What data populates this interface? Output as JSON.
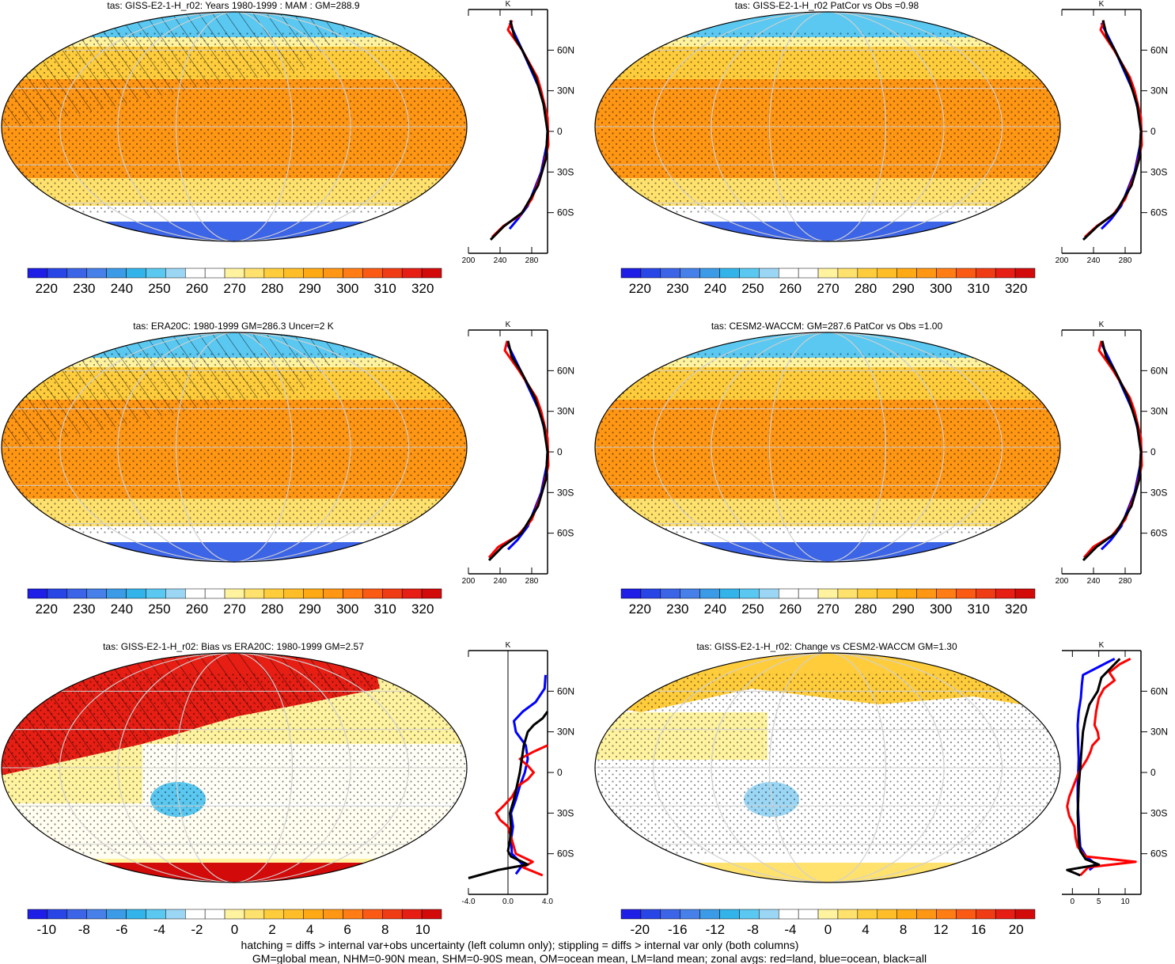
{
  "panels": [
    {
      "id": "p1",
      "title": "tas: GISS-E2-1-H_r02: Years 1980-1999 : MAM : GM=288.9",
      "kind": "abs",
      "colorbar": {
        "colors": "abs",
        "labels": [
          "220",
          "230",
          "240",
          "250",
          "260",
          "270",
          "280",
          "290",
          "300",
          "310",
          "320"
        ]
      },
      "zonal": {
        "unit": "K",
        "xlim": [
          200,
          300
        ],
        "xticks": [
          "200",
          "240",
          "280"
        ],
        "lat_labels": [
          "60N",
          "30N",
          "0",
          "30S",
          "60S"
        ],
        "lat_values": [
          60,
          30,
          0,
          -30,
          -60
        ],
        "series": [
          {
            "color": "#0000ff",
            "lat": [
              80,
              60,
              30,
              10,
              0,
              -10,
              -30,
              -55,
              -65,
              -72
            ],
            "val": [
              252,
              268,
              291,
              299,
              300,
              299,
              292,
              275,
              262,
              252
            ]
          },
          {
            "color": "#ff0000",
            "lat": [
              82,
              75,
              60,
              40,
              30,
              10,
              -10,
              -30,
              -50,
              -62,
              -70,
              -78
            ],
            "val": [
              255,
              250,
              268,
              287,
              292,
              300,
              301,
              293,
              280,
              265,
              244,
              230
            ]
          },
          {
            "color": "#000000",
            "lat": [
              82,
              70,
              60,
              40,
              20,
              0,
              -20,
              -40,
              -60,
              -70,
              -80
            ],
            "val": [
              253,
              258,
              268,
              285,
              295,
              300,
              298,
              288,
              268,
              245,
              228
            ]
          }
        ]
      }
    },
    {
      "id": "p2",
      "title": "tas: GISS-E2-1-H_r02 PatCor vs Obs =0.98",
      "kind": "abs",
      "colorbar": {
        "colors": "abs",
        "labels": [
          "220",
          "230",
          "240",
          "250",
          "260",
          "270",
          "280",
          "290",
          "300",
          "310",
          "320"
        ]
      },
      "zonal": {
        "unit": "K",
        "xlim": [
          200,
          300
        ],
        "xticks": [
          "200",
          "240",
          "280"
        ],
        "lat_labels": [
          "60N",
          "30N",
          "0",
          "30S",
          "60S"
        ],
        "lat_values": [
          60,
          30,
          0,
          -30,
          -60
        ],
        "series": [
          {
            "color": "#0000ff",
            "lat": [
              80,
              60,
              30,
              10,
              0,
              -10,
              -30,
              -55,
              -65,
              -72
            ],
            "val": [
              250,
              267,
              290,
              299,
              300,
              299,
              292,
              275,
              262,
              250
            ]
          },
          {
            "color": "#ff0000",
            "lat": [
              82,
              75,
              60,
              40,
              30,
              10,
              -10,
              -30,
              -50,
              -62,
              -70,
              -78
            ],
            "val": [
              253,
              249,
              266,
              286,
              292,
              300,
              301,
              293,
              280,
              264,
              244,
              229
            ]
          },
          {
            "color": "#000000",
            "lat": [
              82,
              70,
              60,
              40,
              20,
              0,
              -20,
              -40,
              -60,
              -70,
              -80
            ],
            "val": [
              252,
              257,
              267,
              284,
              295,
              300,
              298,
              288,
              268,
              245,
              227
            ]
          }
        ]
      }
    },
    {
      "id": "p3",
      "title": "tas: ERA20C: 1980-1999 GM=286.3 Uncer=2 K",
      "kind": "abs",
      "colorbar": {
        "colors": "abs",
        "labels": [
          "220",
          "230",
          "240",
          "250",
          "260",
          "270",
          "280",
          "290",
          "300",
          "310",
          "320"
        ]
      },
      "zonal": {
        "unit": "K",
        "xlim": [
          200,
          300
        ],
        "xticks": [
          "200",
          "240",
          "280"
        ],
        "lat_labels": [
          "60N",
          "30N",
          "0",
          "30S",
          "60S"
        ],
        "lat_values": [
          60,
          30,
          0,
          -30,
          -60
        ],
        "series": [
          {
            "color": "#0000ff",
            "lat": [
              80,
              60,
              30,
              10,
              0,
              -10,
              -30,
              -55,
              -65,
              -72
            ],
            "val": [
              249,
              266,
              290,
              299,
              300,
              299,
              292,
              275,
              262,
              250
            ]
          },
          {
            "color": "#ff0000",
            "lat": [
              82,
              75,
              60,
              40,
              30,
              10,
              -10,
              -30,
              -50,
              -62,
              -70,
              -78
            ],
            "val": [
              249,
              246,
              264,
              286,
              292,
              300,
              301,
              293,
              280,
              262,
              238,
              226
            ]
          },
          {
            "color": "#000000",
            "lat": [
              82,
              70,
              60,
              40,
              20,
              0,
              -20,
              -40,
              -60,
              -70,
              -80
            ],
            "val": [
              250,
              255,
              266,
              284,
              295,
              300,
              298,
              288,
              267,
              243,
              226
            ]
          }
        ]
      }
    },
    {
      "id": "p4",
      "title": "tas: CESM2-WACCM: GM=287.6 PatCor vs Obs =1.00",
      "kind": "abs",
      "colorbar": {
        "colors": "abs",
        "labels": [
          "220",
          "230",
          "240",
          "250",
          "260",
          "270",
          "280",
          "290",
          "300",
          "310",
          "320"
        ]
      },
      "zonal": {
        "unit": "K",
        "xlim": [
          200,
          300
        ],
        "xticks": [
          "200",
          "240",
          "280"
        ],
        "lat_labels": [
          "60N",
          "30N",
          "0",
          "30S",
          "60S"
        ],
        "lat_values": [
          60,
          30,
          0,
          -30,
          -60
        ],
        "series": [
          {
            "color": "#0000ff",
            "lat": [
              80,
              60,
              30,
              10,
              0,
              -10,
              -30,
              -55,
              -65,
              -72
            ],
            "val": [
              250,
              267,
              290,
              299,
              300,
              299,
              292,
              275,
              262,
              250
            ]
          },
          {
            "color": "#ff0000",
            "lat": [
              82,
              75,
              60,
              40,
              30,
              10,
              -10,
              -30,
              -50,
              -62,
              -70,
              -78
            ],
            "val": [
              250,
              247,
              265,
              286,
              292,
              300,
              301,
              293,
              280,
              263,
              240,
              228
            ]
          },
          {
            "color": "#000000",
            "lat": [
              82,
              70,
              60,
              40,
              20,
              0,
              -20,
              -40,
              -60,
              -70,
              -80
            ],
            "val": [
              251,
              256,
              267,
              284,
              295,
              300,
              298,
              288,
              268,
              244,
              227
            ]
          }
        ]
      }
    },
    {
      "id": "p5",
      "title": "tas: GISS-E2-1-H_r02: Bias vs ERA20C: 1980-1999 GM=2.57",
      "kind": "bias",
      "colorbar": {
        "colors": "div",
        "labels": [
          "-10",
          "-8",
          "-6",
          "-4",
          "-2",
          "0",
          "2",
          "4",
          "6",
          "8",
          "10"
        ]
      },
      "zonal": {
        "unit": "K",
        "xlim": [
          -4,
          4
        ],
        "xticks": [
          "-4.0",
          "0.0",
          "4.0"
        ],
        "zero_line": true,
        "lat_labels": [
          "60N",
          "30N",
          "0",
          "30S",
          "60S"
        ],
        "lat_values": [
          60,
          30,
          0,
          -30,
          -60
        ],
        "series": [
          {
            "color": "#0000ff",
            "lat": [
              72,
              62,
              52,
              45,
              38,
              30,
              20,
              10,
              0,
              -10,
              -20,
              -30,
              -40,
              -50,
              -60,
              -68,
              -75
            ],
            "val": [
              3.8,
              3.7,
              2.8,
              1.5,
              0.6,
              0.8,
              1.8,
              2.0,
              1.7,
              1.2,
              0.8,
              0.3,
              0.5,
              0.3,
              0.4,
              1.5,
              0.8
            ]
          },
          {
            "color": "#ff0000",
            "lat": [
              20,
              15,
              10,
              5,
              0,
              -5,
              -10,
              -18,
              -25,
              -30,
              -35,
              -40,
              -50,
              -60,
              -66,
              -70,
              -76
            ],
            "val": [
              4.0,
              2.5,
              1.2,
              2.0,
              2.6,
              2.0,
              1.0,
              0.4,
              -0.5,
              -1.2,
              -0.8,
              0.0,
              0.4,
              0.8,
              2.5,
              1.5,
              3.5
            ]
          },
          {
            "color": "#000000",
            "lat": [
              45,
              40,
              35,
              30,
              20,
              10,
              0,
              -10,
              -20,
              -30,
              -40,
              -50,
              -58,
              -62,
              -68,
              -72,
              -78
            ],
            "val": [
              4.0,
              3.5,
              2.6,
              2.0,
              1.6,
              1.4,
              1.2,
              0.9,
              0.6,
              0.2,
              0.3,
              0.2,
              0.0,
              0.3,
              2.0,
              -1.0,
              -4.0
            ]
          }
        ]
      }
    },
    {
      "id": "p6",
      "title": "tas: GISS-E2-1-H_r02: Change vs CESM2-WACCM GM=1.30",
      "kind": "change",
      "colorbar": {
        "colors": "div",
        "labels": [
          "-20",
          "-16",
          "-12",
          "-8",
          "-4",
          "0",
          "4",
          "8",
          "12",
          "16",
          "20"
        ]
      },
      "zonal": {
        "unit": "K",
        "xlim": [
          -2,
          13
        ],
        "xticks": [
          "0",
          "5",
          "10"
        ],
        "tick_values": [
          0,
          5,
          10
        ],
        "lat_labels": [
          "60N",
          "30N",
          "0",
          "30S",
          "60S"
        ],
        "lat_values": [
          60,
          30,
          0,
          -30,
          -60
        ],
        "series": [
          {
            "color": "#0000ff",
            "lat": [
              84,
              80,
              72,
              65,
              55,
              45,
              35,
              20,
              10,
              0,
              -10,
              -20,
              -30,
              -45,
              -55,
              -62,
              -68,
              -72
            ],
            "val": [
              8,
              6,
              2,
              1.8,
              1.6,
              1.2,
              1.0,
              1.1,
              1.2,
              1.1,
              1.0,
              1.0,
              1.1,
              1.3,
              1.5,
              2.6,
              4.5,
              3.2
            ]
          },
          {
            "color": "#ff0000",
            "lat": [
              84,
              80,
              74,
              68,
              62,
              55,
              45,
              35,
              30,
              25,
              20,
              15,
              10,
              5,
              0,
              -8,
              -18,
              -25,
              -32,
              -40,
              -48,
              -55,
              -62,
              -66,
              -70,
              -76
            ],
            "val": [
              11,
              9,
              7,
              8,
              6,
              5,
              4.5,
              4.2,
              4.8,
              5.0,
              3.8,
              3.4,
              2.8,
              2.0,
              1.2,
              0.4,
              -0.6,
              -1.0,
              -0.6,
              0.4,
              0.6,
              1.0,
              2.5,
              12.0,
              3.0,
              1.5
            ]
          },
          {
            "color": "#000000",
            "lat": [
              84,
              78,
              70,
              60,
              50,
              40,
              30,
              20,
              10,
              0,
              -10,
              -20,
              -30,
              -40,
              -50,
              -58,
              -64,
              -68,
              -72,
              -76
            ],
            "val": [
              9,
              7.5,
              5.5,
              4.8,
              3.2,
              2.5,
              2.0,
              1.8,
              1.6,
              1.4,
              1.2,
              1.1,
              1.0,
              1.1,
              1.2,
              1.5,
              2.5,
              5.0,
              -1.0,
              1.5
            ]
          }
        ]
      }
    }
  ],
  "footer": {
    "line1": "hatching = diffs > internal var+obs uncertainty (left column only); stippling = diffs > internal var only (both columns)",
    "line2": "GM=global mean, NHM=0-90N mean, SHM=0-90S mean, OM=ocean mean, LM=land mean; zonal avgs: red=land, blue=ocean, black=all"
  },
  "colors": {
    "abs": [
      "#1e1ee6",
      "#2846e6",
      "#3c64e6",
      "#4680e8",
      "#3c9be6",
      "#32b4eb",
      "#5ac8f0",
      "#9bd7f5",
      "#ffffff",
      "#ffffff",
      "#fff3a0",
      "#ffe16e",
      "#ffcd3c",
      "#ffbe28",
      "#ffaa14",
      "#ff9614",
      "#ff7d14",
      "#fa5a14",
      "#f03c14",
      "#e61e14",
      "#d20a0a"
    ],
    "div": [
      "#1e1ee6",
      "#2846e6",
      "#3c64e6",
      "#4680e8",
      "#3c9be6",
      "#32b4eb",
      "#5ac8f0",
      "#9bd7f5",
      "#ffffff",
      "#ffffff",
      "#fff3a0",
      "#ffe16e",
      "#ffcd3c",
      "#ffbe28",
      "#ffaa14",
      "#ff9614",
      "#ff7d14",
      "#fa5a14",
      "#f03c14",
      "#e61e14",
      "#d20a0a"
    ]
  },
  "chart_data": [
    {
      "type": "line",
      "title": "tas: GISS-E2-1-H_r02: Years 1980-1999 : MAM : GM=288.9",
      "xlabel": "K",
      "ylabel": "",
      "xlim": [
        200,
        300
      ],
      "ylim": [
        -90,
        90
      ],
      "series": [
        {
          "values": "zonal series, see panels.0.zonal"
        }
      ]
    },
    {
      "type": "line",
      "title": "tas: GISS-E2-1-H_r02 PatCor vs Obs =0.98",
      "xlabel": "K",
      "xlim": [
        200,
        300
      ],
      "ylim": [
        -90,
        90
      ]
    },
    {
      "type": "line",
      "title": "tas: ERA20C: 1980-1999 GM=286.3 Uncer=2 K",
      "xlabel": "K",
      "xlim": [
        200,
        300
      ],
      "ylim": [
        -90,
        90
      ]
    },
    {
      "type": "line",
      "title": "tas: CESM2-WACCM: GM=287.6 PatCor vs Obs =1.00",
      "xlabel": "K",
      "xlim": [
        200,
        300
      ],
      "ylim": [
        -90,
        90
      ]
    },
    {
      "type": "line",
      "title": "tas: GISS-E2-1-H_r02: Bias vs ERA20C: 1980-1999 GM=2.57",
      "xlabel": "K",
      "xlim": [
        -4,
        4
      ],
      "ylim": [
        -90,
        90
      ]
    },
    {
      "type": "line",
      "title": "tas: GISS-E2-1-H_r02: Change vs CESM2-WACCM GM=1.30",
      "xlabel": "K",
      "xlim": [
        -2,
        13
      ],
      "ylim": [
        -90,
        90
      ]
    }
  ]
}
